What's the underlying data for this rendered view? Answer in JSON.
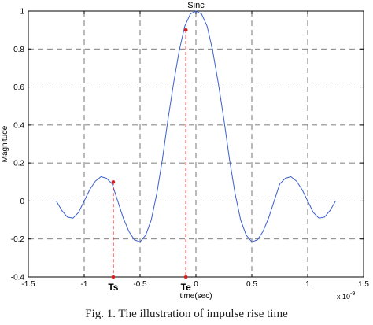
{
  "caption": "Fig. 1. The illustration of impulse rise time",
  "chart_data": {
    "type": "line",
    "title": "Sinc",
    "xlabel": "time(sec)",
    "ylabel": "Magnitude",
    "x_exponent_label": "x 10",
    "x_exponent_power": "-9",
    "xlim": [
      -1.5,
      1.5
    ],
    "ylim": [
      -0.4,
      1
    ],
    "xticks": [
      -1.5,
      -1,
      -0.5,
      0,
      0.5,
      1,
      1.5
    ],
    "xtick_labels": [
      "-1.5",
      "-1",
      "-0.5",
      "0",
      "0.5",
      "1",
      "1.5"
    ],
    "yticks": [
      -0.4,
      -0.2,
      0,
      0.2,
      0.4,
      0.6,
      0.8,
      1
    ],
    "ytick_labels": [
      "-0.4",
      "-0.2",
      "0",
      "0.2",
      "0.4",
      "0.6",
      "0.8",
      "1"
    ],
    "grid": true,
    "grid_style": "dashed",
    "series": [
      {
        "color": "#3a5fcd",
        "x": [
          -1.25,
          -1.2,
          -1.15,
          -1.1,
          -1.05,
          -1.0,
          -0.95,
          -0.9,
          -0.85,
          -0.8,
          -0.75,
          -0.7,
          -0.65,
          -0.6,
          -0.55,
          -0.5,
          -0.45,
          -0.4,
          -0.35,
          -0.3,
          -0.25,
          -0.2,
          -0.15,
          -0.1,
          -0.05,
          0.0,
          0.05,
          0.1,
          0.15,
          0.2,
          0.25,
          0.3,
          0.35,
          0.4,
          0.45,
          0.5,
          0.55,
          0.6,
          0.65,
          0.7,
          0.75,
          0.8,
          0.85,
          0.9,
          0.95,
          1.0,
          1.05,
          1.1,
          1.15,
          1.2,
          1.25
        ],
        "y": [
          0.0,
          -0.05,
          -0.085,
          -0.09,
          -0.06,
          0.0,
          0.06,
          0.105,
          0.128,
          0.12,
          0.09,
          0.0,
          -0.09,
          -0.16,
          -0.205,
          -0.215,
          -0.18,
          -0.1,
          0.04,
          0.22,
          0.43,
          0.62,
          0.79,
          0.92,
          0.985,
          1.0,
          0.985,
          0.92,
          0.79,
          0.62,
          0.43,
          0.22,
          0.04,
          -0.1,
          -0.18,
          -0.215,
          -0.205,
          -0.16,
          -0.09,
          0.0,
          0.09,
          0.12,
          0.128,
          0.105,
          0.06,
          0.0,
          -0.06,
          -0.09,
          -0.085,
          -0.05,
          0.0
        ]
      }
    ],
    "annotations": [
      {
        "label": "Ts",
        "x": -0.74,
        "y": 0.1,
        "color": "#d62020"
      },
      {
        "label": "Te",
        "x": -0.09,
        "y": 0.9,
        "color": "#d62020"
      }
    ]
  }
}
